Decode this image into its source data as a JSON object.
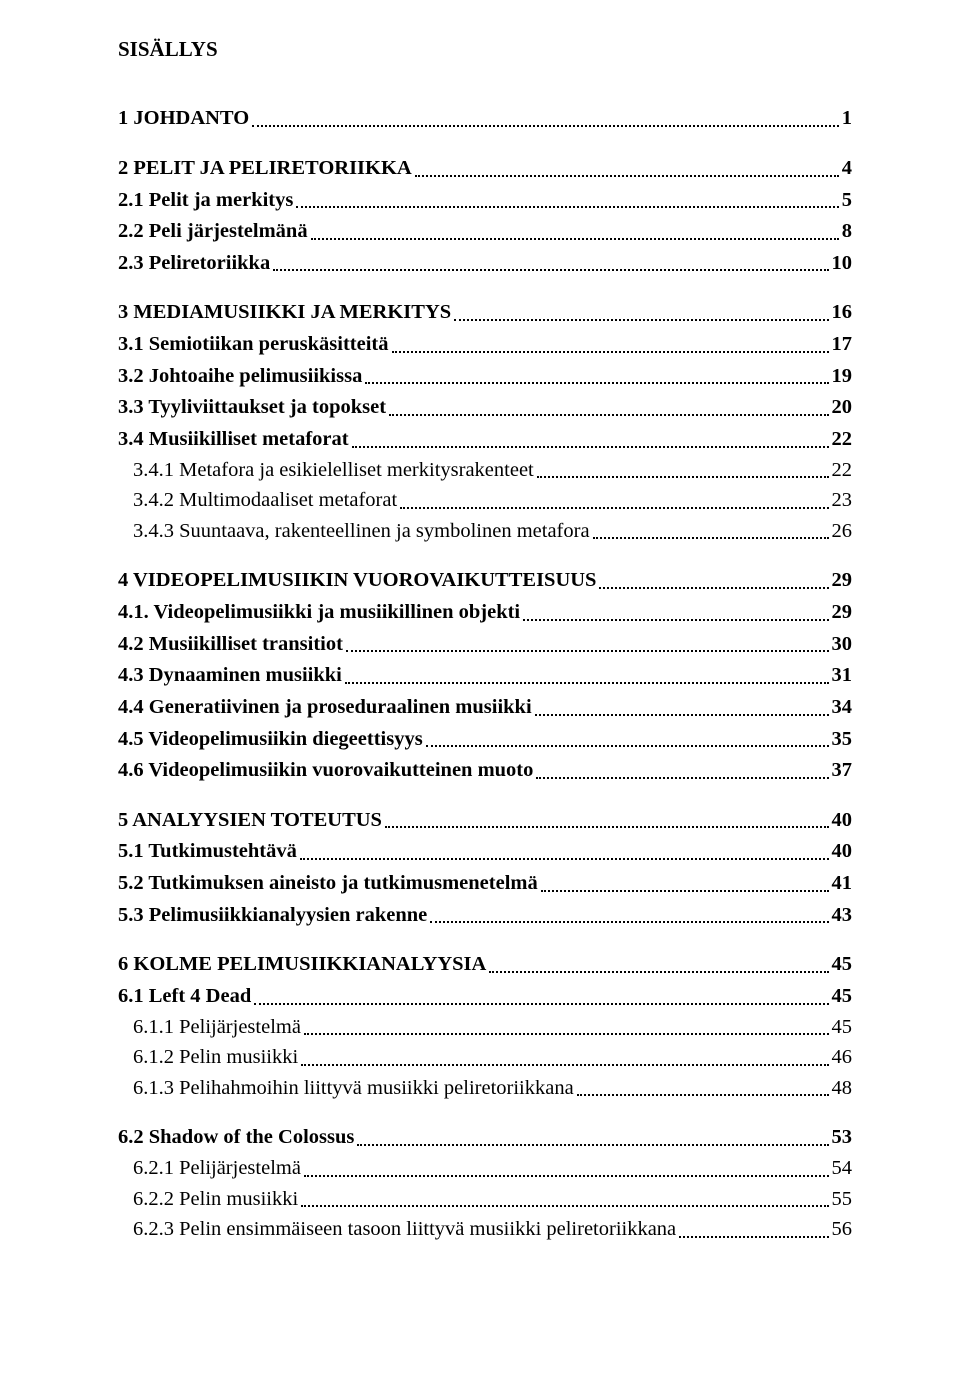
{
  "title": "SISÄLLYS",
  "toc": [
    {
      "label": "1 JOHDANTO",
      "page": "1",
      "class": "lvl1"
    },
    {
      "label": "2 PELIT JA PELIRETORIIKKA",
      "page": "4",
      "class": "lvl1"
    },
    {
      "label": "2.1 Pelit ja merkitys",
      "page": "5",
      "class": "lvl2-bold"
    },
    {
      "label": "2.2 Peli järjestelmänä",
      "page": "8",
      "class": "lvl2-bold"
    },
    {
      "label": "2.3 Peliretoriikka",
      "page": "10",
      "class": "lvl2-bold"
    },
    {
      "label": "3 MEDIAMUSIIKKI JA MERKITYS",
      "page": "16",
      "class": "lvl1"
    },
    {
      "label": "3.1 Semiotiikan peruskäsitteitä",
      "page": "17",
      "class": "lvl2-bold"
    },
    {
      "label": "3.2 Johtoaihe pelimusiikissa",
      "page": "19",
      "class": "lvl2-bold"
    },
    {
      "label": "3.3 Tyyliviittaukset ja topokset",
      "page": "20",
      "class": "lvl2-bold"
    },
    {
      "label": "3.4 Musiikilliset metaforat",
      "page": "22",
      "class": "lvl2-bold"
    },
    {
      "label": "3.4.1 Metafora ja esikielelliset merkitysrakenteet",
      "page": "22",
      "class": "lvl2"
    },
    {
      "label": "3.4.2 Multimodaaliset metaforat",
      "page": "23",
      "class": "lvl2"
    },
    {
      "label": "3.4.3 Suuntaava, rakenteellinen ja symbolinen metafora",
      "page": "26",
      "class": "lvl2"
    },
    {
      "label": "4 VIDEOPELIMUSIIKIN VUOROVAIKUTTEISUUS",
      "page": "29",
      "class": "lvl1"
    },
    {
      "label": "4.1. Videopelimusiikki ja musiikillinen objekti",
      "page": "29",
      "class": "lvl2-bold"
    },
    {
      "label": "4.2 Musiikilliset transitiot",
      "page": "30",
      "class": "lvl2-bold"
    },
    {
      "label": "4.3 Dynaaminen musiikki",
      "page": "31",
      "class": "lvl2-bold"
    },
    {
      "label": "4.4 Generatiivinen ja proseduraalinen musiikki",
      "page": "34",
      "class": "lvl2-bold"
    },
    {
      "label": "4.5 Videopelimusiikin diegeettisyys",
      "page": "35",
      "class": "lvl2-bold"
    },
    {
      "label": "4.6 Videopelimusiikin vuorovaikutteinen muoto",
      "page": "37",
      "class": "lvl2-bold"
    },
    {
      "label": "5 ANALYYSIEN TOTEUTUS",
      "page": "40",
      "class": "lvl1"
    },
    {
      "label": "5.1 Tutkimustehtävä",
      "page": "40",
      "class": "lvl2-bold"
    },
    {
      "label": "5.2 Tutkimuksen aineisto ja tutkimusmenetelmä",
      "page": "41",
      "class": "lvl2-bold"
    },
    {
      "label": "5.3 Pelimusiikkianalyysien rakenne",
      "page": "43",
      "class": "lvl2-bold"
    },
    {
      "label": "6 KOLME PELIMUSIIKKIANALYYSIA",
      "page": "45",
      "class": "lvl1"
    },
    {
      "label": "6.1 Left 4 Dead",
      "page": "45",
      "class": "lvl2-bold"
    },
    {
      "label": "6.1.1 Pelijärjestelmä",
      "page": "45",
      "class": "lvl2"
    },
    {
      "label": "6.1.2 Pelin musiikki",
      "page": "46",
      "class": "lvl2"
    },
    {
      "label": "6.1.3 Pelihahmoihin liittyvä musiikki peliretoriikkana",
      "page": "48",
      "class": "lvl2"
    },
    {
      "label": "6.2 Shadow of the Colossus",
      "page": "53",
      "class": "lvl2-bold gap-before"
    },
    {
      "label": "6.2.1 Pelijärjestelmä",
      "page": "54",
      "class": "lvl2"
    },
    {
      "label": "6.2.2 Pelin musiikki",
      "page": "55",
      "class": "lvl2"
    },
    {
      "label": "6.2.3 Pelin ensimmäiseen tasoon liittyvä musiikki peliretoriikkana",
      "page": "56",
      "class": "lvl2"
    }
  ]
}
